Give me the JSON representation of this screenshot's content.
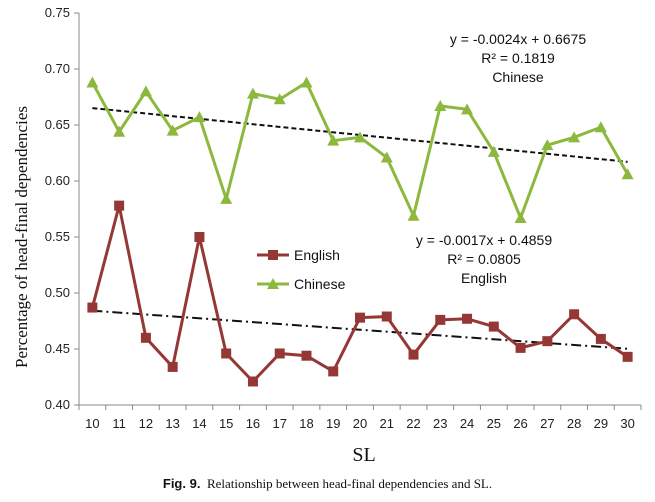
{
  "chart_data": {
    "type": "line",
    "xlabel": "SL",
    "ylabel": "Percentage of head-final  dependencies",
    "ylim": [
      0.4,
      0.75
    ],
    "yticks": [
      "0.40",
      "0.45",
      "0.50",
      "0.55",
      "0.60",
      "0.65",
      "0.70",
      "0.75"
    ],
    "x": [
      10,
      11,
      12,
      13,
      14,
      15,
      16,
      17,
      18,
      19,
      20,
      21,
      22,
      23,
      24,
      25,
      26,
      27,
      28,
      29,
      30
    ],
    "series": [
      {
        "name": "English",
        "color": "#953735",
        "marker": "square",
        "values": [
          0.487,
          0.578,
          0.46,
          0.434,
          0.55,
          0.446,
          0.421,
          0.446,
          0.444,
          0.43,
          0.478,
          0.479,
          0.445,
          0.476,
          0.477,
          0.47,
          0.451,
          0.457,
          0.481,
          0.459,
          0.443
        ],
        "trendline": {
          "style": "dash-dot",
          "slope": -0.0017,
          "intercept": 0.4859,
          "eq": "y = -0.0017x + 0.4859",
          "r2": "R² = 0.0805",
          "label": "English"
        }
      },
      {
        "name": "Chinese",
        "color": "#8db83e",
        "marker": "triangle",
        "values": [
          0.688,
          0.644,
          0.68,
          0.645,
          0.657,
          0.584,
          0.678,
          0.673,
          0.688,
          0.636,
          0.639,
          0.621,
          0.569,
          0.667,
          0.664,
          0.626,
          0.567,
          0.632,
          0.639,
          0.648,
          0.606
        ],
        "trendline": {
          "style": "dashed",
          "slope": -0.0024,
          "intercept": 0.6675,
          "eq": "y = -0.0024x + 0.6675",
          "r2": "R² = 0.1819",
          "label": "Chinese"
        }
      }
    ],
    "legend": {
      "placement": "center-left",
      "entries": [
        "English",
        "Chinese"
      ]
    },
    "grid": false
  },
  "caption": {
    "prefix": "Fig. 9.",
    "text": "Relationship between head-final dependencies and SL."
  }
}
